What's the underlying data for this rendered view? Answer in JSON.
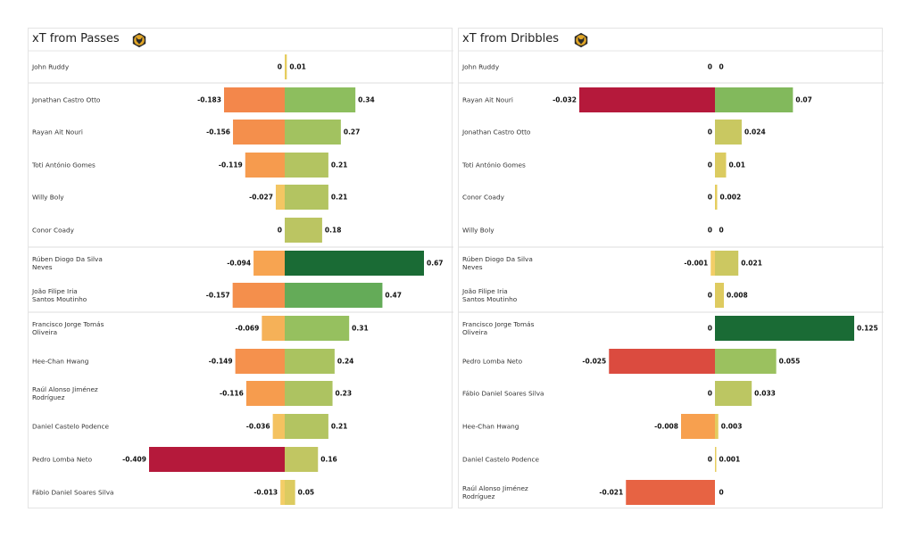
{
  "logo_text": "Wolverhampton Wanderers crest",
  "colors": {
    "neg_scale": [
      "#f2d46a",
      "#f7a04f",
      "#f2804a",
      "#e0523f",
      "#b5193b"
    ],
    "pos_scale": [
      "#e8cd5f",
      "#bfc662",
      "#8fbf5e",
      "#5aa657",
      "#1a6b35"
    ]
  },
  "chart_data": [
    {
      "type": "bar",
      "orientation": "horizontal-diverging",
      "title": "xT from Passes",
      "categories": [
        "John Ruddy",
        "Jonathan Castro Otto",
        "Rayan Ait Nouri",
        "Toti António Gomes",
        "Willy Boly",
        "Conor  Coady",
        "Rúben Diogo Da Silva Neves",
        "João Filipe Iria Santos Moutinho",
        "Francisco Jorge Tomás Oliveira",
        "Hee-Chan Hwang",
        "Raúl Alonso Jiménez Rodríguez",
        "Daniel Castelo Podence",
        "Pedro Lomba Neto",
        "Fábio Daniel Soares Silva"
      ],
      "series": [
        {
          "values": [
            0,
            -0.183,
            -0.156,
            -0.119,
            -0.027,
            0,
            -0.094,
            -0.157,
            -0.069,
            -0.149,
            -0.116,
            -0.036,
            -0.409,
            -0.013
          ]
        },
        {
          "values": [
            0.01,
            0.34,
            0.27,
            0.21,
            0.21,
            0.18,
            0.67,
            0.47,
            0.31,
            0.24,
            0.23,
            0.21,
            0.16,
            0.05
          ]
        }
      ],
      "grid": false
    },
    {
      "type": "bar",
      "orientation": "horizontal-diverging",
      "title": "xT from Dribbles",
      "categories": [
        "John Ruddy",
        "Rayan Ait Nouri",
        "Jonathan Castro Otto",
        "Toti António Gomes",
        "Conor  Coady",
        "Willy Boly",
        "Rúben Diogo Da Silva Neves",
        "João Filipe Iria Santos Moutinho",
        "Francisco Jorge Tomás Oliveira",
        "Pedro Lomba Neto",
        "Fábio Daniel Soares Silva",
        "Hee-Chan Hwang",
        "Daniel Castelo Podence",
        "Raúl Alonso Jiménez Rodríguez"
      ],
      "series": [
        {
          "values": [
            0,
            -0.032,
            0,
            0,
            0,
            0,
            -0.001,
            0,
            0,
            -0.025,
            0,
            -0.008,
            0,
            -0.021
          ]
        },
        {
          "values": [
            0,
            0.07,
            0.024,
            0.01,
            0.002,
            0,
            0.021,
            0.008,
            0.125,
            0.055,
            0.033,
            0.003,
            0.001,
            0
          ]
        }
      ],
      "grid": false
    }
  ]
}
